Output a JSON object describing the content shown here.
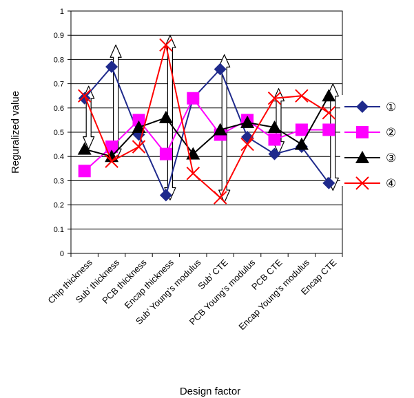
{
  "chart_data": {
    "type": "line",
    "title": "",
    "xlabel": "Design factor",
    "ylabel": "Reguralized value",
    "ylim": [
      0,
      1
    ],
    "yticks": [
      "0",
      "0.1",
      "0.2",
      "0.3",
      "0.4",
      "0.5",
      "0.6",
      "0.7",
      "0.8",
      "0.9",
      "1"
    ],
    "grid": true,
    "legend_position": "right",
    "categories": [
      "Chip thickness",
      "Sub’ thickness",
      "PCB thickness",
      "Encap thickness",
      "Sub’ Young’s modulus",
      "Sub’ CTE",
      "PCB Young’s modulus",
      "PCB CTE",
      "Encap Young’s modulus",
      "Encap CTE"
    ],
    "series": [
      {
        "name": "①",
        "color": "#1f2a8c",
        "marker": "diamond",
        "values": [
          0.64,
          0.77,
          0.49,
          0.24,
          0.64,
          0.76,
          0.48,
          0.41,
          0.44,
          0.29
        ]
      },
      {
        "name": "②",
        "color": "#ff00ff",
        "marker": "square",
        "values": [
          0.34,
          0.44,
          0.55,
          0.41,
          0.64,
          0.49,
          0.55,
          0.47,
          0.51,
          0.51
        ]
      },
      {
        "name": "③",
        "color": "#000000",
        "marker": "triangle",
        "values": [
          0.43,
          0.4,
          0.52,
          0.56,
          0.41,
          0.51,
          0.54,
          0.52,
          0.45,
          0.65
        ]
      },
      {
        "name": "④",
        "color": "#ff0000",
        "marker": "x",
        "values": [
          0.65,
          0.38,
          0.44,
          0.86,
          0.33,
          0.23,
          0.45,
          0.64,
          0.65,
          0.58
        ]
      }
    ],
    "arrows": [
      {
        "from_category": "Chip thickness",
        "from_value": 0.43,
        "to_value": 0.69
      },
      {
        "from_category": "Sub’ thickness",
        "from_value": 0.38,
        "to_value": 0.86
      },
      {
        "from_category": "Encap thickness",
        "from_value": 0.22,
        "to_value": 0.9
      },
      {
        "from_category": "Sub’ CTE",
        "from_value": 0.21,
        "to_value": 0.82
      },
      {
        "from_category": "PCB CTE",
        "from_value": 0.41,
        "to_value": 0.68
      },
      {
        "from_category": "Encap CTE",
        "from_value": 0.26,
        "to_value": 0.7
      }
    ]
  }
}
